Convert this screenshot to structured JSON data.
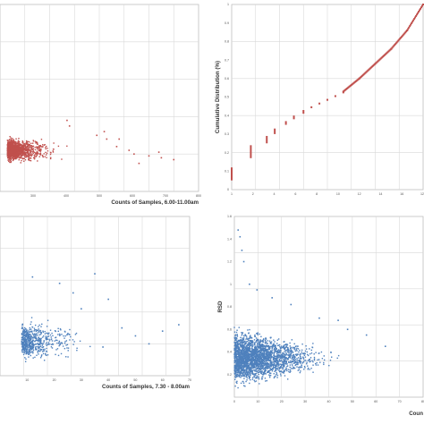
{
  "chart_data": [
    {
      "type": "scatter",
      "panel": "top-left",
      "xlabel": "Counts of Samples, 6.00-11.00am",
      "ylabel": "",
      "xlim": [
        0,
        800
      ],
      "ylim": [
        0,
        1.0
      ],
      "x_ticks": [
        "300",
        "400",
        "500",
        "600",
        "700",
        "800"
      ],
      "y_ticks": [],
      "grid": true,
      "marker_color": "#c0504d",
      "series": [
        {
          "cluster": {
            "x_center": 30,
            "x_spread": 150,
            "y_center": 0.22,
            "y_spread": 0.05,
            "count": 1200
          },
          "points": [
            [
              270,
              0.38
            ],
            [
              280,
              0.35
            ],
            [
              420,
              0.32
            ],
            [
              430,
              0.28
            ],
            [
              470,
              0.24
            ],
            [
              520,
              0.22
            ],
            [
              540,
              0.2
            ],
            [
              600,
              0.19
            ],
            [
              650,
              0.18
            ],
            [
              700,
              0.17
            ],
            [
              560,
              0.15
            ],
            [
              480,
              0.28
            ],
            [
              390,
              0.3
            ],
            [
              640,
              0.21
            ]
          ]
        }
      ]
    },
    {
      "type": "scatter",
      "panel": "top-right",
      "xlabel": "",
      "ylabel": "Cumulative Distribution (%)",
      "xlim": [
        0,
        120
      ],
      "ylim": [
        0,
        1.0
      ],
      "x_ticks": [
        "1",
        "2",
        "4",
        "6",
        "8",
        "10",
        "12",
        "14",
        "16",
        "120"
      ],
      "y_ticks": [
        "0",
        "0.1",
        "0.2",
        "0.3",
        "0.4",
        "0.5",
        "0.6",
        "0.7",
        "0.8",
        "0.9",
        "1"
      ],
      "grid": true,
      "marker_color": "#c0504d",
      "series": [
        {
          "steps": [
            [
              0,
              0.05,
              0.12
            ],
            [
              12,
              0.17,
              0.24
            ],
            [
              22,
              0.25,
              0.29
            ],
            [
              27,
              0.3,
              0.33
            ],
            [
              34,
              0.35,
              0.37
            ],
            [
              39,
              0.38,
              0.4
            ],
            [
              45,
              0.41,
              0.43
            ],
            [
              50,
              0.44,
              0.45
            ],
            [
              55,
              0.46,
              0.47
            ],
            [
              60,
              0.48,
              0.49
            ],
            [
              65,
              0.5,
              0.51
            ],
            [
              70,
              0.52,
              0.53
            ]
          ],
          "line": [
            [
              70,
              0.53
            ],
            [
              80,
              0.6
            ],
            [
              90,
              0.68
            ],
            [
              100,
              0.76
            ],
            [
              110,
              0.86
            ],
            [
              120,
              1.0
            ]
          ]
        }
      ]
    },
    {
      "type": "scatter",
      "panel": "bottom-left",
      "xlabel": "Counts of Samples, 7.30 - 8.00am",
      "ylabel": "",
      "xlim": [
        0,
        70
      ],
      "ylim": [
        0,
        1.0
      ],
      "x_ticks": [
        "10",
        "20",
        "30",
        "40",
        "50",
        "60",
        "70"
      ],
      "y_ticks": [],
      "grid": true,
      "marker_color": "#4f81bd",
      "series": [
        {
          "cluster": {
            "x_center": 8,
            "x_spread": 18,
            "y_center": 0.22,
            "y_spread": 0.1,
            "count": 600
          },
          "points": [
            [
              12,
              0.62
            ],
            [
              22,
              0.58
            ],
            [
              35,
              0.64
            ],
            [
              40,
              0.48
            ],
            [
              30,
              0.42
            ],
            [
              45,
              0.3
            ],
            [
              50,
              0.25
            ],
            [
              55,
              0.2
            ],
            [
              60,
              0.28
            ],
            [
              66,
              0.32
            ],
            [
              38,
              0.18
            ],
            [
              27,
              0.52
            ]
          ]
        }
      ]
    },
    {
      "type": "scatter",
      "panel": "bottom-right",
      "xlabel": "Coun",
      "ylabel": "RSD",
      "xlim": [
        0,
        100
      ],
      "ylim": [
        0,
        1.6
      ],
      "x_ticks": [
        "0",
        "10",
        "20",
        "30",
        "40",
        "50",
        "60",
        "70",
        "80"
      ],
      "y_ticks": [
        "0.2",
        "0.4",
        "0.6",
        "0.8",
        "1",
        "1.2",
        "1.4",
        "1.6"
      ],
      "grid": true,
      "marker_color": "#4f81bd",
      "series": [
        {
          "cluster": {
            "x_max": 100,
            "decay": 0.35,
            "y_center": 0.35,
            "y_spread": 0.2,
            "count": 2600
          },
          "points": [
            [
              2,
              1.48
            ],
            [
              3,
              1.42
            ],
            [
              4,
              1.3
            ],
            [
              5,
              1.2
            ],
            [
              8,
              1.0
            ],
            [
              12,
              0.95
            ],
            [
              20,
              0.88
            ],
            [
              30,
              0.82
            ],
            [
              45,
              0.7
            ],
            [
              55,
              0.68
            ],
            [
              60,
              0.6
            ],
            [
              70,
              0.55
            ],
            [
              80,
              0.45
            ]
          ]
        }
      ]
    }
  ]
}
